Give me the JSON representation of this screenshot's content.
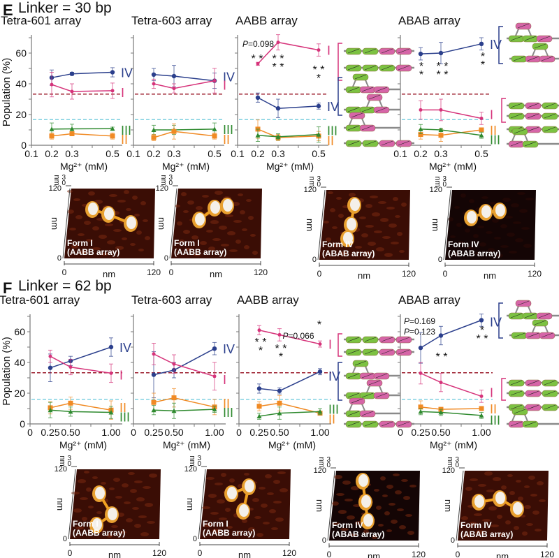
{
  "sections": [
    {
      "letter": "E",
      "title": "Linker = 30 bp",
      "xlabel": "Mg²⁺ (mM)",
      "ylabel": "Population (%)",
      "afm": [
        {
          "form": "Form I",
          "array": "(AABB array)"
        },
        {
          "form": "Form I",
          "array": "(AABB array)"
        },
        {
          "form": "Form IV",
          "array": "(ABAB array)"
        },
        {
          "form": "Form IV",
          "array": "(ABAB array)"
        }
      ]
    },
    {
      "letter": "F",
      "title": "Linker = 62 bp",
      "xlabel": "Mg²⁺ (mM)",
      "ylabel": "Population (%)",
      "afm": [
        {
          "form": "Form I",
          "array": "(AABB array)"
        },
        {
          "form": "Form I",
          "array": "(AABB array)"
        },
        {
          "form": "Form IV",
          "array": "(ABAB array)"
        },
        {
          "form": "Form IV",
          "array": "(ABAB array)"
        }
      ]
    }
  ],
  "afm_axes": {
    "z_unit": "nm",
    "z_ticks": [
      "3",
      "0"
    ],
    "y_unit": "nm",
    "y_ticks": [
      "120",
      "0"
    ],
    "x_unit": "nm",
    "x_ticks": [
      "0",
      "120"
    ]
  },
  "colors": {
    "IV": "#2b3f8c",
    "I": "#d6337a",
    "II": "#f08a24",
    "III": "#2f8a2f",
    "ref_I": "#9b1c2c",
    "ref_other": "#7fd0e0",
    "green_nuc": "#7cc242",
    "pink_nuc": "#d665a8"
  },
  "chart_data": [
    {
      "type": "line",
      "title": "Tetra-601 array",
      "section": "E",
      "x": [
        0.2,
        0.3,
        0.5
      ],
      "xticks": [
        "0.1",
        "0.2",
        "0.3",
        "0.5"
      ],
      "xlim": [
        0.1,
        0.55
      ],
      "ylim": [
        0,
        70
      ],
      "yticks": [
        "0",
        "20",
        "40",
        "60"
      ],
      "xlabel": "Mg²⁺ (mM)",
      "ylabel": "Population (%)",
      "reference_lines": [
        33.3,
        16.7
      ],
      "series": [
        {
          "name": "IV",
          "values": [
            44,
            46.5,
            47.5
          ],
          "err": [
            5,
            1,
            3
          ]
        },
        {
          "name": "I",
          "values": [
            39.5,
            35,
            35.5
          ],
          "err": [
            8,
            5,
            5
          ]
        },
        {
          "name": "III",
          "values": [
            10.5,
            10.7,
            10.8
          ],
          "err": [
            4,
            3,
            1
          ]
        },
        {
          "name": "II",
          "values": [
            6,
            7.5,
            6
          ],
          "err": [
            2,
            1,
            2
          ]
        }
      ],
      "annotations": []
    },
    {
      "type": "line",
      "title": "Tetra-603 array",
      "section": "E",
      "x": [
        0.2,
        0.3,
        0.5
      ],
      "xticks": [
        "0.1",
        "0.2",
        "0.3",
        "0.5"
      ],
      "xlim": [
        0.1,
        0.55
      ],
      "ylim": [
        0,
        70
      ],
      "yticks": [
        "0",
        "20",
        "40",
        "60"
      ],
      "xlabel": "Mg²⁺ (mM)",
      "ylabel": "",
      "reference_lines": [
        33.3,
        16.7
      ],
      "series": [
        {
          "name": "IV",
          "values": [
            46,
            45,
            42
          ],
          "err": [
            4,
            7,
            5
          ]
        },
        {
          "name": "I",
          "values": [
            40,
            37,
            42
          ],
          "err": [
            3,
            3,
            8
          ]
        },
        {
          "name": "III",
          "values": [
            10,
            10,
            10.5
          ],
          "err": [
            3,
            3,
            4
          ]
        },
        {
          "name": "II",
          "values": [
            5,
            9,
            6
          ],
          "err": [
            2,
            5,
            2
          ]
        }
      ],
      "annotations": []
    },
    {
      "type": "line",
      "title": "AABB array",
      "section": "E",
      "x": [
        0.2,
        0.3,
        0.5
      ],
      "xticks": [
        "0.1",
        "0.2",
        "0.3",
        "0.5"
      ],
      "xlim": [
        0.1,
        0.55
      ],
      "ylim": [
        0,
        70
      ],
      "yticks": [
        "0",
        "20",
        "40",
        "60"
      ],
      "xlabel": "Mg²⁺ (mM)",
      "ylabel": "",
      "reference_lines": [
        33.3,
        16.7
      ],
      "series": [
        {
          "name": "I",
          "values": [
            53,
            67,
            62
          ],
          "err": [
            1,
            5,
            4
          ]
        },
        {
          "name": "IV",
          "values": [
            31,
            24,
            25.5
          ],
          "err": [
            3,
            6,
            2
          ]
        },
        {
          "name": "II",
          "values": [
            10.5,
            5,
            6
          ],
          "err": [
            6,
            2,
            3
          ]
        },
        {
          "name": "III",
          "values": [
            6.5,
            5.5,
            7
          ],
          "err": [
            4,
            2,
            5
          ]
        }
      ],
      "annotations": [
        "P=0.098",
        "**",
        "**\n**",
        "**\n*"
      ]
    },
    {
      "type": "line",
      "title": "ABAB array",
      "section": "E",
      "x": [
        0.2,
        0.3,
        0.5
      ],
      "xticks": [
        "0.1",
        "0.2",
        "0.3",
        "0.5"
      ],
      "xlim": [
        0.1,
        0.55
      ],
      "ylim": [
        0,
        70
      ],
      "yticks": [
        "0",
        "20",
        "40",
        "60"
      ],
      "xlabel": "Mg²⁺ (mM)",
      "ylabel": "",
      "reference_lines": [
        33.3,
        16.7
      ],
      "series": [
        {
          "name": "IV",
          "values": [
            59.5,
            60,
            66
          ],
          "err": [
            4,
            7,
            4
          ]
        },
        {
          "name": "I",
          "values": [
            23,
            23,
            17.5
          ],
          "err": [
            6,
            7,
            4
          ]
        },
        {
          "name": "II",
          "values": [
            7,
            6.5,
            10
          ],
          "err": [
            3,
            4,
            1
          ]
        },
        {
          "name": "III",
          "values": [
            10.5,
            10,
            6.5
          ],
          "err": [
            3,
            1,
            2
          ]
        }
      ],
      "annotations": [
        "*\n*",
        "**\n**",
        "*\n*"
      ]
    },
    {
      "type": "line",
      "title": "Tetra-601 array",
      "section": "F",
      "x": [
        0.25,
        0.5,
        1.0
      ],
      "xticks": [
        "0",
        "0.25",
        "0.50",
        "1.00"
      ],
      "xlim": [
        0,
        1.1
      ],
      "ylim": [
        0,
        70
      ],
      "yticks": [
        "0",
        "20",
        "40",
        "60"
      ],
      "xlabel": "Mg²⁺ (mM)",
      "ylabel": "Population (%)",
      "reference_lines": [
        33.3,
        16.0
      ],
      "series": [
        {
          "name": "IV",
          "values": [
            36.5,
            41,
            50
          ],
          "err": [
            9,
            3,
            6
          ]
        },
        {
          "name": "I",
          "values": [
            44,
            37,
            33
          ],
          "err": [
            4,
            5,
            6
          ]
        },
        {
          "name": "II",
          "values": [
            10.5,
            13.5,
            9
          ],
          "err": [
            4,
            4,
            6
          ]
        },
        {
          "name": "III",
          "values": [
            9,
            8,
            7.5
          ],
          "err": [
            5,
            3,
            4
          ]
        }
      ],
      "annotations": []
    },
    {
      "type": "line",
      "title": "Tetra-603 array",
      "section": "F",
      "x": [
        0.25,
        0.5,
        1.0
      ],
      "xticks": [
        "0",
        "0.25",
        "0.50",
        "1.00"
      ],
      "xlim": [
        0,
        1.1
      ],
      "ylim": [
        0,
        70
      ],
      "yticks": [
        "0",
        "20",
        "40",
        "60"
      ],
      "xlabel": "Mg²⁺ (mM)",
      "ylabel": "",
      "reference_lines": [
        33.3,
        16.0
      ],
      "series": [
        {
          "name": "IV",
          "values": [
            32,
            35,
            49
          ],
          "err": [
            15,
            5,
            4
          ]
        },
        {
          "name": "I",
          "values": [
            45.5,
            39,
            31
          ],
          "err": [
            7,
            6,
            9
          ]
        },
        {
          "name": "II",
          "values": [
            14,
            17,
            11
          ],
          "err": [
            6,
            6,
            5
          ]
        },
        {
          "name": "III",
          "values": [
            9,
            8.5,
            9.5
          ],
          "err": [
            3,
            5,
            2
          ]
        }
      ],
      "annotations": []
    },
    {
      "type": "line",
      "title": "AABB array",
      "section": "F",
      "x": [
        0.25,
        0.5,
        1.0
      ],
      "xticks": [
        "0",
        "0.25",
        "0.50",
        "1.00"
      ],
      "xlim": [
        0,
        1.1
      ],
      "ylim": [
        0,
        70
      ],
      "yticks": [
        "0",
        "20",
        "40",
        "60"
      ],
      "xlabel": "Mg²⁺ (mM)",
      "ylabel": "",
      "reference_lines": [
        33.3,
        16.0
      ],
      "series": [
        {
          "name": "I",
          "values": [
            61,
            58,
            52
          ],
          "err": [
            3,
            4,
            2
          ]
        },
        {
          "name": "IV",
          "values": [
            23,
            21.5,
            34
          ],
          "err": [
            3,
            2,
            2
          ]
        },
        {
          "name": "II",
          "values": [
            11.5,
            13.5,
            7
          ],
          "err": [
            3,
            5,
            1
          ]
        },
        {
          "name": "III",
          "values": [
            5,
            7,
            8
          ],
          "err": [
            2,
            4,
            2
          ]
        }
      ],
      "annotations": [
        "**\n*",
        "**\n*",
        "*",
        "P=0.066"
      ]
    },
    {
      "type": "line",
      "title": "ABAB array",
      "section": "F",
      "x": [
        0.25,
        0.5,
        1.0
      ],
      "xticks": [
        "0",
        "0.25",
        "0.50",
        "1.00"
      ],
      "xlim": [
        0,
        1.1
      ],
      "ylim": [
        0,
        70
      ],
      "yticks": [
        "0",
        "20",
        "40",
        "60"
      ],
      "xlabel": "Mg²⁺ (mM)",
      "ylabel": "",
      "reference_lines": [
        33.3,
        16.0
      ],
      "series": [
        {
          "name": "IV",
          "values": [
            49.5,
            57.5,
            67.5
          ],
          "err": [
            10,
            6,
            4
          ]
        },
        {
          "name": "I",
          "values": [
            33,
            27,
            18
          ],
          "err": [
            7,
            6,
            4
          ]
        },
        {
          "name": "II",
          "values": [
            11,
            9.5,
            10
          ],
          "err": [
            4,
            1,
            1
          ]
        },
        {
          "name": "III",
          "values": [
            8,
            7.5,
            5.5
          ],
          "err": [
            2,
            2,
            2
          ]
        }
      ],
      "annotations": [
        "P=0.169",
        "P=0.123",
        "**",
        "*\n**"
      ]
    }
  ]
}
